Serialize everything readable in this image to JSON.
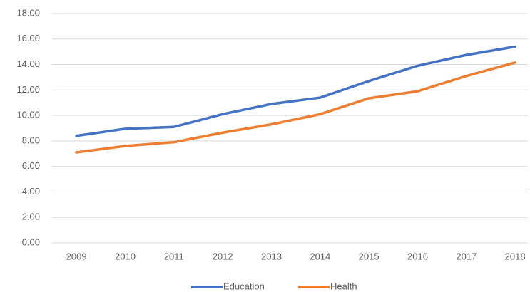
{
  "chart_data": {
    "type": "line",
    "categories": [
      "2009",
      "2010",
      "2011",
      "2012",
      "2013",
      "2014",
      "2015",
      "2016",
      "2017",
      "2018"
    ],
    "series": [
      {
        "name": "Education",
        "color": "#4472c4",
        "values": [
          8.4,
          8.95,
          9.1,
          10.1,
          10.9,
          11.4,
          12.7,
          13.9,
          14.75,
          15.4
        ]
      },
      {
        "name": "Health",
        "color": "#ed7d31",
        "values": [
          7.1,
          7.6,
          7.9,
          8.65,
          9.3,
          10.1,
          11.35,
          11.9,
          13.1,
          14.15
        ]
      }
    ],
    "ylim": [
      0,
      18
    ],
    "yticks": [
      {
        "value": 0,
        "label": "0.00"
      },
      {
        "value": 2,
        "label": "2.00"
      },
      {
        "value": 4,
        "label": "4.00"
      },
      {
        "value": 6,
        "label": "6.00"
      },
      {
        "value": 8,
        "label": "8.00"
      },
      {
        "value": 10,
        "label": "10.00"
      },
      {
        "value": 12,
        "label": "12.00"
      },
      {
        "value": 14,
        "label": "14.00"
      },
      {
        "value": 16,
        "label": "16.00"
      },
      {
        "value": 18,
        "label": "18.00"
      }
    ],
    "grid": true,
    "legend": "bottom"
  }
}
